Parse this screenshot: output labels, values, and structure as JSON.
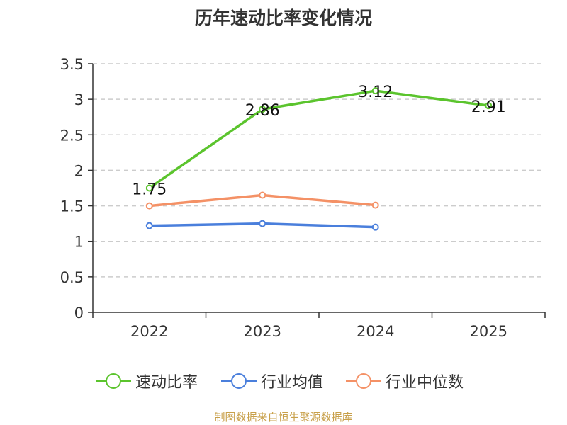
{
  "chart_data": {
    "type": "line",
    "title": "历年速动比率变化情况",
    "categories": [
      "2022",
      "2023",
      "2024",
      "2025"
    ],
    "ylim": [
      0,
      3.5
    ],
    "yticks": [
      "0",
      "0.5",
      "1",
      "1.5",
      "2",
      "2.5",
      "3",
      "3.5"
    ],
    "grid": true,
    "legend_position": "bottom",
    "series": [
      {
        "name": "速动比率",
        "color": "#5bc42d",
        "values": [
          1.75,
          2.86,
          3.12,
          2.91
        ],
        "labels": [
          "1.75",
          "2.86",
          "3.12",
          "2.91"
        ],
        "show_labels": true
      },
      {
        "name": "行业均值",
        "color": "#4a7fdc",
        "values": [
          1.22,
          1.25,
          1.2,
          null
        ],
        "show_labels": false
      },
      {
        "name": "行业中位数",
        "color": "#f49166",
        "values": [
          1.5,
          1.65,
          1.51,
          null
        ],
        "show_labels": false
      }
    ]
  },
  "source": "制图数据来自恒生聚源数据库"
}
